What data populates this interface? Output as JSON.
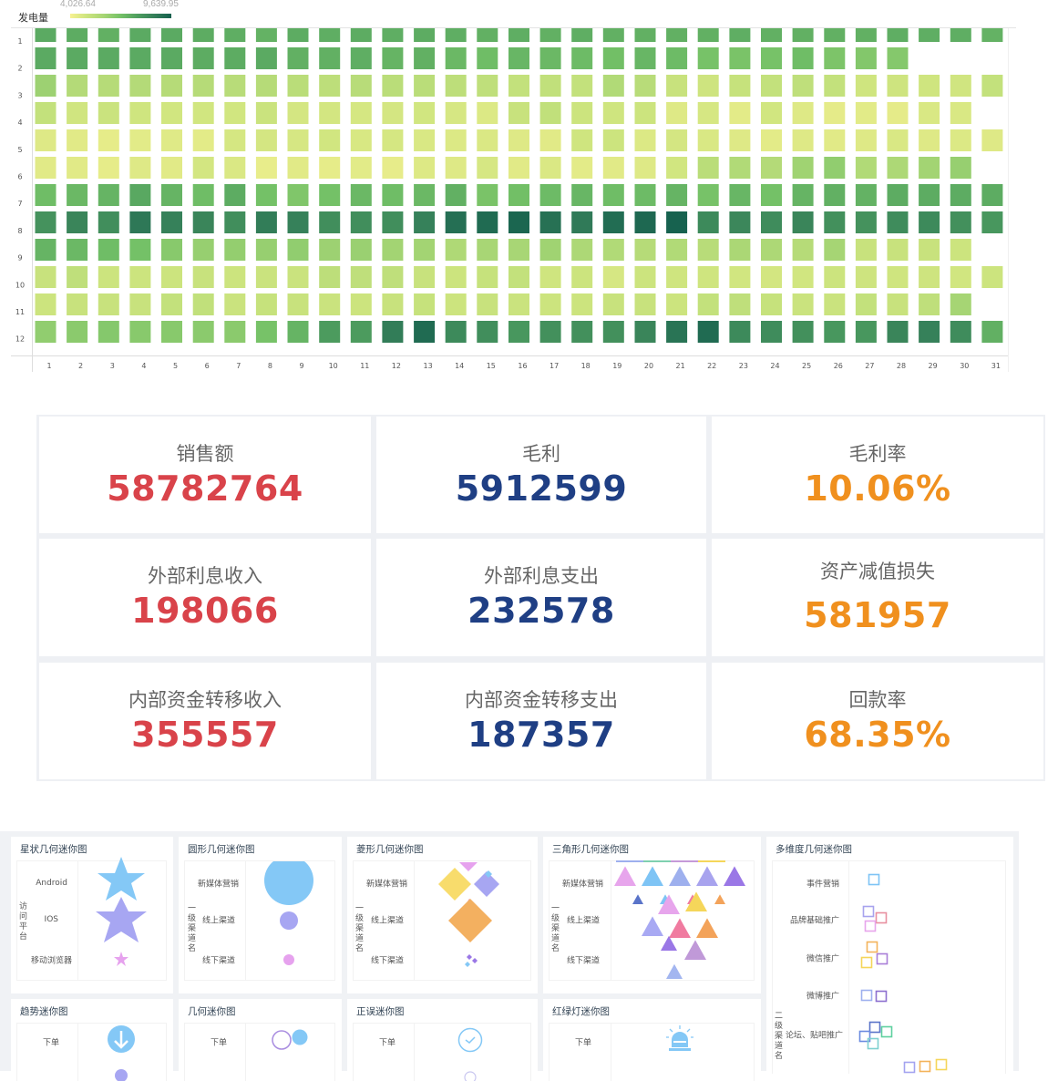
{
  "chart_data": {
    "type": "heatmap",
    "legend": {
      "title": "发电量",
      "min_label": "4,026.64",
      "max_label": "9,639.95",
      "min": 4026.64,
      "max": 9639.95,
      "placement": "top-left"
    },
    "x_categories": [
      "1",
      "2",
      "3",
      "4",
      "5",
      "6",
      "7",
      "8",
      "9",
      "10",
      "11",
      "12",
      "13",
      "14",
      "15",
      "16",
      "17",
      "18",
      "19",
      "20",
      "21",
      "22",
      "23",
      "24",
      "25",
      "26",
      "27",
      "28",
      "29",
      "30",
      "31"
    ],
    "y_categories": [
      "1",
      "2",
      "3",
      "4",
      "5",
      "6",
      "7",
      "8",
      "9",
      "10",
      "11",
      "12"
    ],
    "colors": [
      "#f7f191",
      "#cce47e",
      "#a6d574",
      "#74c167",
      "#4e9e5f",
      "#347e59",
      "#15604e"
    ],
    "values": [
      [
        7950,
        7900,
        7800,
        7950,
        7950,
        7900,
        7850,
        7750,
        7900,
        7850,
        7900,
        7850,
        7900,
        7850,
        7800,
        7850,
        7800,
        7850,
        7800,
        7800,
        7800,
        7800,
        7850,
        7800,
        7800,
        7800,
        7800,
        7850,
        7850,
        7850,
        7750
      ],
      [
        7950,
        7950,
        7950,
        7950,
        7950,
        7900,
        7900,
        7950,
        7800,
        7800,
        7850,
        7700,
        7800,
        7600,
        7500,
        7650,
        7600,
        7550,
        7450,
        7650,
        7550,
        7350,
        7300,
        7350,
        7500,
        7250,
        7150,
        7100,
        null,
        null,
        null
      ],
      [
        6700,
        6250,
        6200,
        6250,
        6200,
        6200,
        6150,
        6200,
        6100,
        6050,
        6150,
        6100,
        6100,
        6050,
        6000,
        5900,
        5950,
        5900,
        6300,
        6150,
        5800,
        5650,
        5850,
        5900,
        6000,
        5900,
        5600,
        5650,
        5600,
        5550,
        5900
      ],
      [
        5900,
        5550,
        5750,
        5600,
        5500,
        5500,
        5500,
        5750,
        5400,
        5450,
        5350,
        5400,
        5500,
        5300,
        5100,
        5800,
        5950,
        5700,
        5600,
        5700,
        5000,
        5300,
        4800,
        5500,
        5000,
        4750,
        4850,
        4750,
        5200,
        5200,
        null
      ],
      [
        5000,
        4900,
        4700,
        4850,
        4950,
        4800,
        5350,
        5400,
        5300,
        5500,
        5250,
        5350,
        5200,
        5100,
        5150,
        5000,
        4900,
        5600,
        5700,
        5100,
        5400,
        5200,
        5000,
        4800,
        5000,
        4900,
        5000,
        5200,
        5000,
        5100,
        5000
      ],
      [
        4900,
        4900,
        4700,
        5000,
        4900,
        5450,
        5150,
        4600,
        4900,
        4700,
        4850,
        4650,
        5050,
        5000,
        5300,
        4900,
        5150,
        4800,
        4900,
        5000,
        5500,
        6100,
        6300,
        6250,
        6650,
        6900,
        6300,
        6400,
        6600,
        6800,
        null
      ],
      [
        7500,
        7600,
        7700,
        8000,
        7700,
        7500,
        7900,
        7400,
        7200,
        7400,
        7600,
        7500,
        7600,
        7800,
        7300,
        7450,
        7550,
        7650,
        7500,
        7550,
        7700,
        7350,
        7650,
        7400,
        7700,
        7800,
        7750,
        7900,
        7900,
        7900,
        7900
      ],
      [
        8500,
        8800,
        8600,
        9100,
        8900,
        8800,
        8600,
        9000,
        8900,
        8600,
        8600,
        8600,
        8900,
        9300,
        9400,
        9500,
        9250,
        9050,
        9350,
        9450,
        9600,
        8700,
        8750,
        8650,
        8800,
        8550,
        8500,
        8650,
        8700,
        8550,
        8400
      ],
      [
        7700,
        7600,
        7500,
        7400,
        7050,
        6800,
        6850,
        6800,
        6900,
        6700,
        6750,
        6600,
        6600,
        6350,
        6500,
        6500,
        6650,
        6400,
        6300,
        6200,
        6300,
        6150,
        6450,
        6400,
        6200,
        6550,
        5800,
        5800,
        5800,
        5700,
        null
      ],
      [
        5800,
        6000,
        5700,
        5700,
        5700,
        5800,
        5700,
        5750,
        5750,
        6050,
        6000,
        6000,
        5800,
        5700,
        5850,
        5900,
        5600,
        5700,
        5300,
        5700,
        5600,
        5600,
        5500,
        5450,
        5500,
        5700,
        5650,
        5600,
        5650,
        5500,
        5700
      ],
      [
        5700,
        5800,
        5800,
        5800,
        5900,
        5950,
        5750,
        5850,
        5800,
        5750,
        5700,
        5800,
        5850,
        5700,
        5800,
        5750,
        5700,
        5700,
        5800,
        5800,
        5700,
        5900,
        6000,
        5850,
        5750,
        5750,
        5900,
        5800,
        6000,
        6550,
        null
      ],
      [
        6900,
        7000,
        7100,
        7050,
        7050,
        7000,
        7000,
        7350,
        7700,
        8300,
        8300,
        9000,
        9400,
        8700,
        8600,
        8400,
        8550,
        8550,
        8550,
        8800,
        9200,
        9400,
        8700,
        8650,
        8550,
        8400,
        8400,
        8800,
        8900,
        8650,
        7800
      ]
    ]
  },
  "kpis": [
    {
      "title": "销售额",
      "value": "58782764",
      "color": "#d9434a"
    },
    {
      "title": "毛利",
      "value": "5912599",
      "color": "#1f3f84"
    },
    {
      "title": "毛利率",
      "value": "10.06%",
      "color": "#f0901e"
    },
    {
      "title": "外部利息收入",
      "value": "198066",
      "color": "#d9434a"
    },
    {
      "title": "外部利息支出",
      "value": "232578",
      "color": "#1f3f84"
    },
    {
      "title": "资产减值损失",
      "value": "581957",
      "color": "#f0901e"
    },
    {
      "title": "内部资金转移收入",
      "value": "355557",
      "color": "#d9434a"
    },
    {
      "title": "内部资金转移支出",
      "value": "187357",
      "color": "#1f3f84"
    },
    {
      "title": "回款率",
      "value": "68.35%",
      "color": "#f0901e"
    }
  ],
  "mini_charts": {
    "star": {
      "title": "星状几何迷你图",
      "axis": "访问平台",
      "rows": [
        "Android",
        "IOS",
        "移动浏览器"
      ]
    },
    "circle": {
      "title": "圆形几何迷你图",
      "axis": "一级渠道名",
      "rows": [
        "新媒体营销",
        "线上渠道",
        "线下渠道"
      ]
    },
    "diamond": {
      "title": "菱形几何迷你图",
      "axis": "一级渠道名",
      "rows": [
        "新媒体营销",
        "线上渠道",
        "线下渠道"
      ]
    },
    "triangle": {
      "title": "三角形几何迷你图",
      "axis": "一级渠道名",
      "rows": [
        "新媒体营销",
        "线上渠道",
        "线下渠道"
      ]
    },
    "multi": {
      "title": "多维度几何迷你图",
      "axis": "二级渠道名",
      "rows": [
        "事件营销",
        "品牌基础推广",
        "微信推广",
        "微博推广",
        "论坛、贴吧推广"
      ]
    },
    "trend": {
      "title": "趋势迷你图",
      "rows": [
        "下单"
      ]
    },
    "geometry": {
      "title": "几何迷你图",
      "rows": [
        "下单"
      ]
    },
    "truefalse": {
      "title": "正误迷你图",
      "rows": [
        "下单"
      ]
    },
    "traffic": {
      "title": "红绿灯迷你图",
      "rows": [
        "下单"
      ]
    }
  }
}
